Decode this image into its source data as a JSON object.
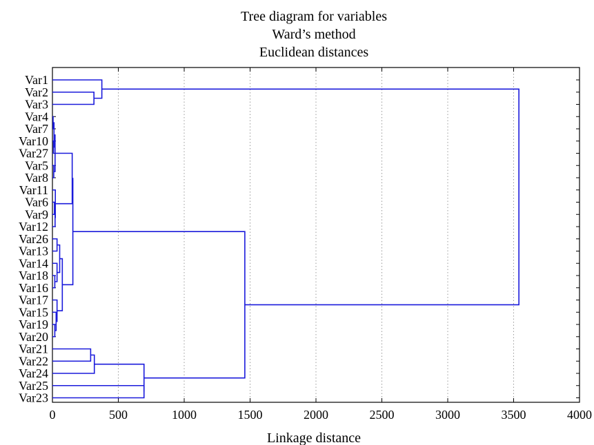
{
  "chart_data": {
    "type": "dendrogram",
    "title": [
      "Tree diagram for variables",
      "Ward’s method",
      "Euclidean distances"
    ],
    "xlabel": "Linkage distance",
    "ylabel": "",
    "xlim": [
      0,
      4000
    ],
    "xticks": [
      0,
      500,
      1000,
      1500,
      2000,
      2500,
      3000,
      3500,
      4000
    ],
    "grid": "vertical dotted",
    "line_color": "#1a1adb",
    "leaves": [
      "Var1",
      "Var2",
      "Var3",
      "Var4",
      "Var7",
      "Var10",
      "Var27",
      "Var5",
      "Var8",
      "Var11",
      "Var6",
      "Var9",
      "Var12",
      "Var26",
      "Var13",
      "Var14",
      "Var18",
      "Var16",
      "Var17",
      "Var15",
      "Var19",
      "Var20",
      "Var21",
      "Var22",
      "Var24",
      "Var25",
      "Var23"
    ],
    "merges": [
      {
        "a": "Var2",
        "b": "Var3",
        "distance": 315
      },
      {
        "a": "Var1",
        "b": "Var2+Var3",
        "distance": 375
      },
      {
        "a": "Var4",
        "b": "Var7",
        "distance": 5
      },
      {
        "a": "Var10",
        "b": "Var27",
        "distance": 8
      },
      {
        "a": "Var4+Var7",
        "b": "Var10+Var27",
        "distance": 12
      },
      {
        "a": "Var5",
        "b": "Var8",
        "distance": 10
      },
      {
        "a": "Var4..Var27",
        "b": "Var5+Var8",
        "distance": 20
      },
      {
        "a": "Var6",
        "b": "Var9",
        "distance": 15
      },
      {
        "a": "Var6+Var9",
        "b": "Var12",
        "distance": 20
      },
      {
        "a": "Var11",
        "b": "Var6..Var12",
        "distance": 22
      },
      {
        "a": "Var4..Var8",
        "b": "Var11..Var12",
        "distance": 150
      },
      {
        "a": "Var26",
        "b": "Var13",
        "distance": 35
      },
      {
        "a": "Var18",
        "b": "Var16",
        "distance": 18
      },
      {
        "a": "Var14",
        "b": "Var18+Var16",
        "distance": 35
      },
      {
        "a": "Var26+Var13",
        "b": "Var14..Var16",
        "distance": 55
      },
      {
        "a": "Var19",
        "b": "Var20",
        "distance": 18
      },
      {
        "a": "Var15",
        "b": "Var19+Var20",
        "distance": 28
      },
      {
        "a": "Var17",
        "b": "Var15..Var20",
        "distance": 35
      },
      {
        "a": "Var26..Var16",
        "b": "Var17..Var20",
        "distance": 75
      },
      {
        "a": "Var4..Var12",
        "b": "Var26..Var20",
        "distance": 155
      },
      {
        "a": "Var21",
        "b": "Var22",
        "distance": 290
      },
      {
        "a": "Var21+Var22",
        "b": "Var24",
        "distance": 318
      },
      {
        "a": "Var25",
        "b": "Var23",
        "distance": 695
      },
      {
        "a": "Var21..Var24",
        "b": "Var25+Var23",
        "distance": 695
      },
      {
        "a": "Var4..Var20",
        "b": "Var21..Var23",
        "distance": 1460
      },
      {
        "a": "Var1..Var3",
        "b": "Var4..Var23",
        "distance": 3540
      }
    ]
  }
}
